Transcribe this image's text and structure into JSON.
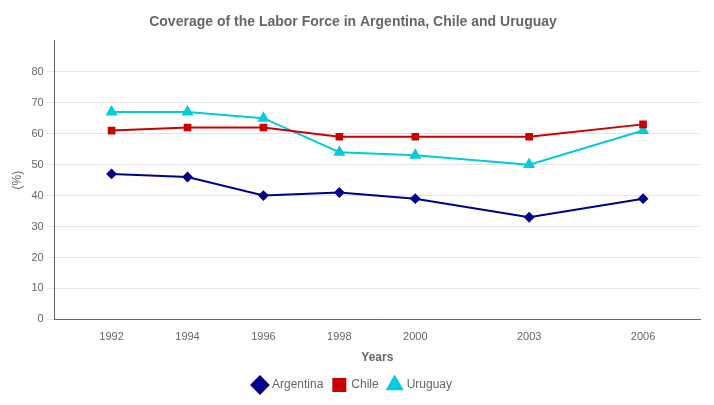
{
  "chart_data": {
    "type": "line",
    "title": "Coverage of the Labor Force in Argentina, Chile and Uruguay",
    "x_label": "Years",
    "y_label": "(%)",
    "x": [
      1992,
      1994,
      1996,
      1998,
      2000,
      2003,
      2006
    ],
    "series": [
      {
        "name": "Argentina",
        "color": "#00008B",
        "marker": "diamond",
        "values": [
          47,
          46,
          40,
          41,
          39,
          33,
          39
        ]
      },
      {
        "name": "Chile",
        "color": "#CC0000",
        "marker": "square",
        "values": [
          61,
          62,
          62,
          59,
          59,
          59,
          63
        ]
      },
      {
        "name": "Uruguay",
        "color": "#00CCDD",
        "marker": "triangle",
        "values": [
          67,
          67,
          65,
          54,
          53,
          50,
          61
        ]
      }
    ],
    "xlim": [
      1990.5,
      2007.5
    ],
    "xticks": [
      1992,
      1994,
      1996,
      1998,
      2000,
      2003,
      2006
    ],
    "ylim": [
      0,
      90
    ],
    "yticks": [
      0,
      10,
      20,
      30,
      40,
      50,
      60,
      70,
      80
    ],
    "grid": "y",
    "legend": "bottom"
  }
}
